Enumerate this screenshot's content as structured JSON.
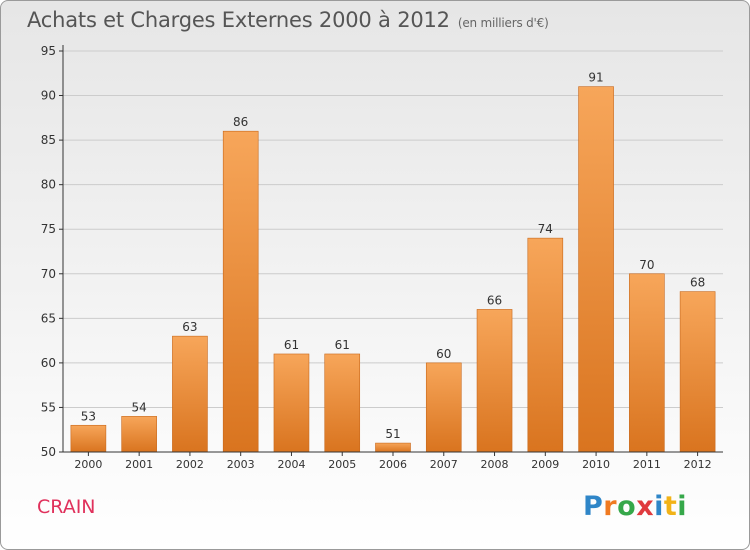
{
  "title": "Achats et Charges Externes 2000 à 2012",
  "unit_label": "(en milliers d'€)",
  "commune": "CRAIN",
  "logo": {
    "text": "Proxiti",
    "letters": [
      {
        "ch": "P",
        "color": "#2f86c8"
      },
      {
        "ch": "r",
        "color": "#f07a21"
      },
      {
        "ch": "o",
        "color": "#36a84a"
      },
      {
        "ch": "x",
        "color": "#e03a3e"
      },
      {
        "ch": "i",
        "color": "#2f86c8"
      },
      {
        "ch": "t",
        "color": "#f2b318"
      },
      {
        "ch": "i",
        "color": "#36a84a"
      }
    ]
  },
  "colors": {
    "bar_light": "#f7a65a",
    "bar_dark": "#d9741f",
    "axis": "#333333",
    "grid": "#cccccc"
  },
  "chart_data": {
    "type": "bar",
    "title": "Achats et Charges Externes 2000 à 2012",
    "xlabel": "",
    "ylabel": "",
    "categories": [
      "2000",
      "2001",
      "2002",
      "2003",
      "2004",
      "2005",
      "2006",
      "2007",
      "2008",
      "2009",
      "2010",
      "2011",
      "2012"
    ],
    "values": [
      53,
      54,
      63,
      86,
      61,
      61,
      51,
      60,
      66,
      74,
      91,
      70,
      68
    ],
    "ylim": [
      50,
      95
    ],
    "yticks": [
      50,
      55,
      60,
      65,
      70,
      75,
      80,
      85,
      90,
      95
    ],
    "grid": true,
    "data_labels": true
  }
}
